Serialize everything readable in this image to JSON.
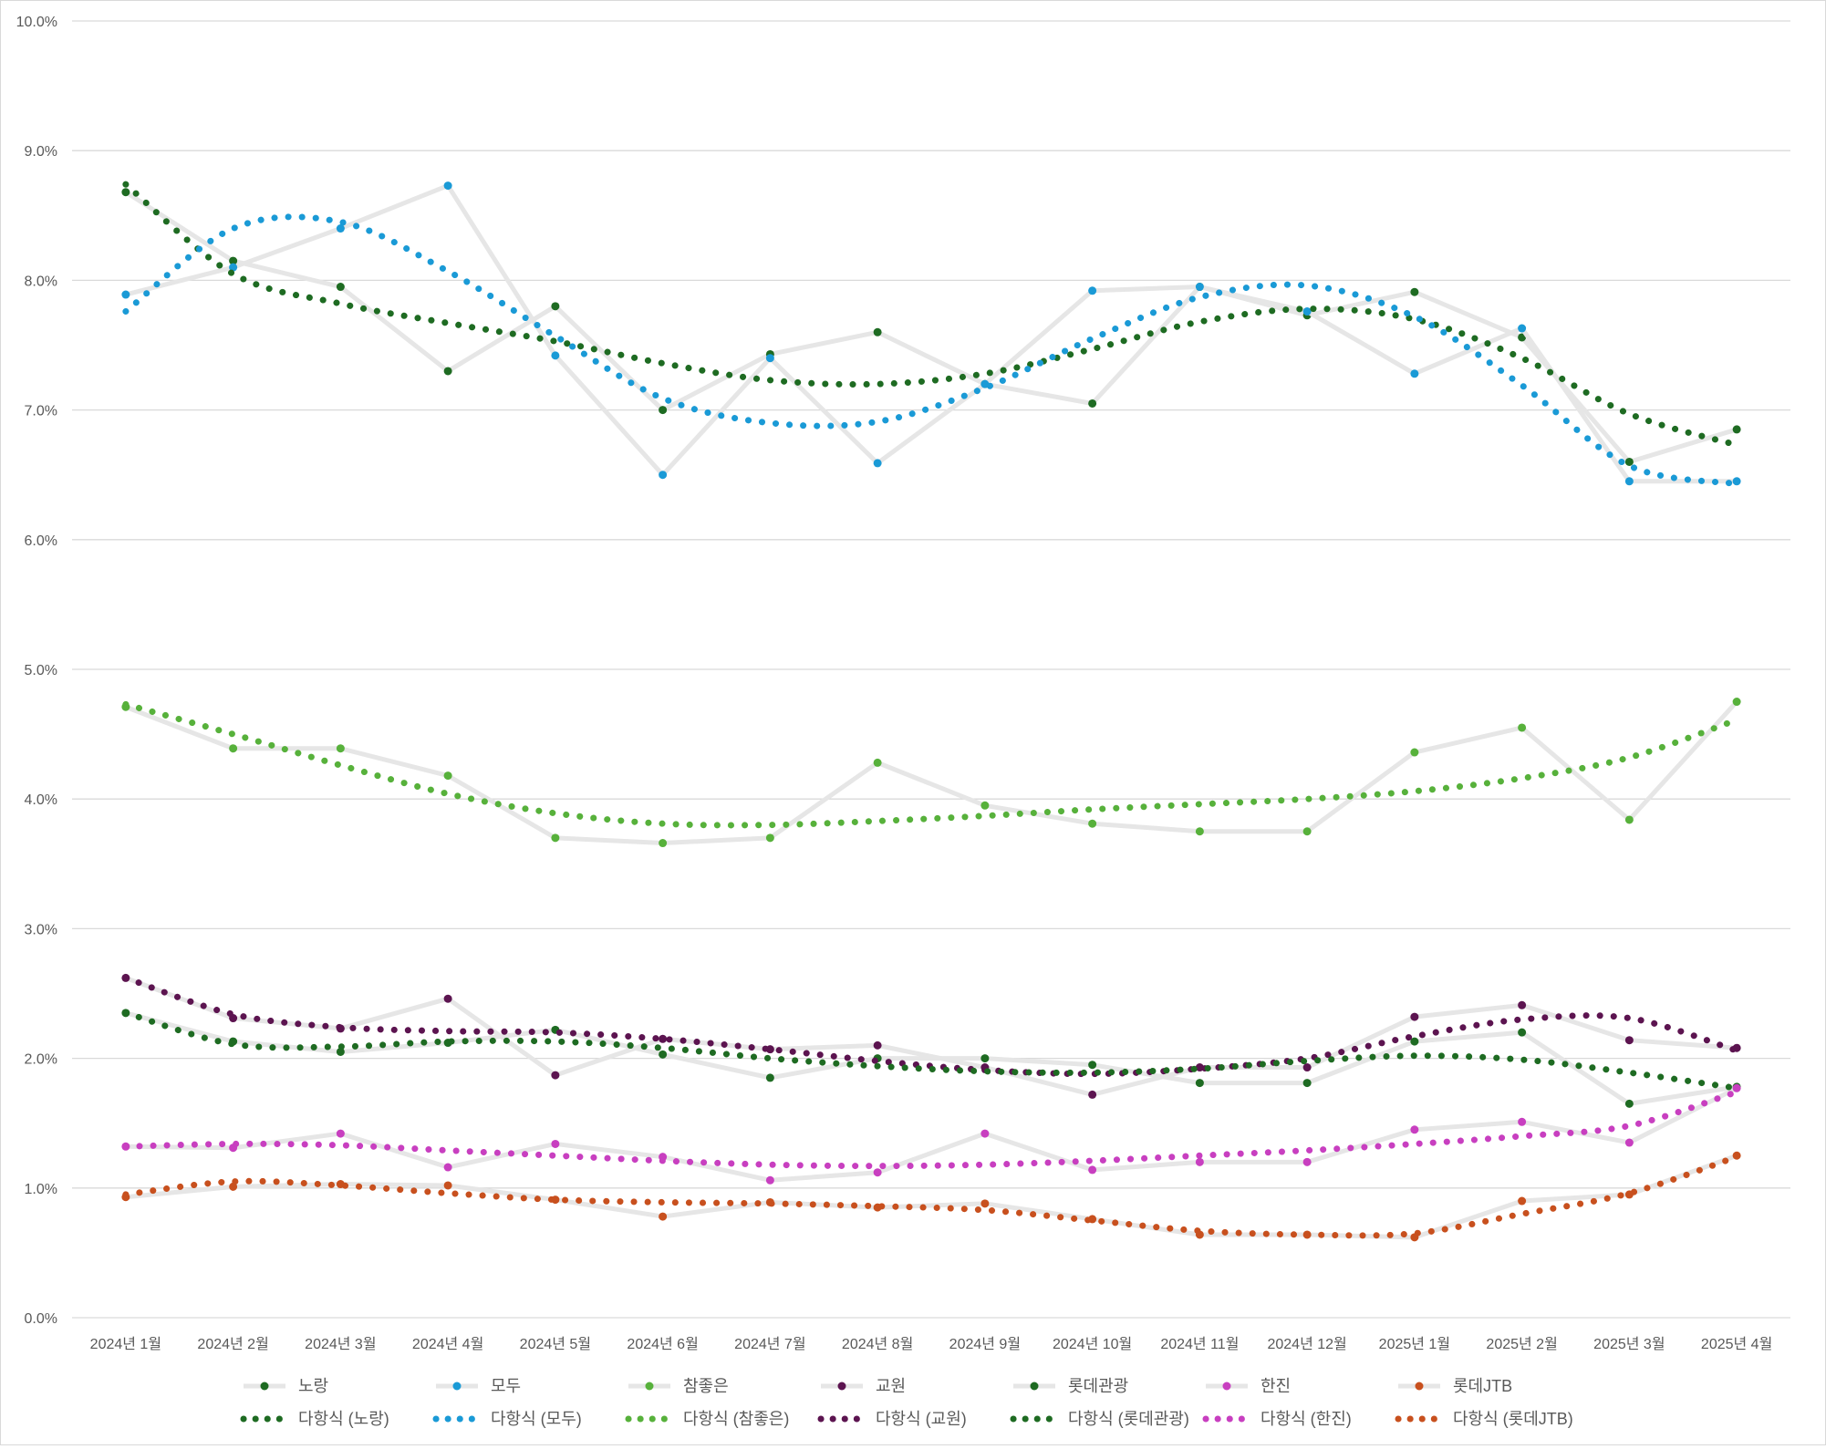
{
  "chart_data": {
    "type": "line",
    "categories": [
      "2024년 1월",
      "2024년 2월",
      "2024년 3월",
      "2024년 4월",
      "2024년 5월",
      "2024년 6월",
      "2024년 7월",
      "2024년 8월",
      "2024년 9월",
      "2024년 10월",
      "2024년 11월",
      "2024년 12월",
      "2025년 1월",
      "2025년 2월",
      "2025년 3월",
      "2025년 4월"
    ],
    "ylim": [
      0,
      10
    ],
    "yticks": [
      "0.0%",
      "1.0%",
      "2.0%",
      "3.0%",
      "4.0%",
      "5.0%",
      "6.0%",
      "7.0%",
      "8.0%",
      "9.0%",
      "10.0%"
    ],
    "grid": true,
    "legend_position": "bottom",
    "series": [
      {
        "name": "노랑",
        "color": "#1e6b22",
        "values": [
          8.68,
          8.15,
          7.95,
          7.3,
          7.8,
          7.0,
          7.43,
          7.6,
          7.2,
          7.05,
          7.95,
          7.73,
          7.91,
          7.56,
          6.6,
          6.85
        ]
      },
      {
        "name": "모두",
        "color": "#1a9ad6",
        "values": [
          7.89,
          8.1,
          8.4,
          8.73,
          7.42,
          6.5,
          7.4,
          6.59,
          7.2,
          7.92,
          7.95,
          7.76,
          7.28,
          7.63,
          6.45,
          6.45
        ]
      },
      {
        "name": "참좋은",
        "color": "#57b13b",
        "values": [
          4.71,
          4.39,
          4.39,
          4.18,
          3.7,
          3.66,
          3.7,
          4.28,
          3.95,
          3.81,
          3.75,
          3.75,
          4.36,
          4.55,
          3.84,
          4.75
        ]
      },
      {
        "name": "교원",
        "color": "#5c1450",
        "values": [
          2.62,
          2.31,
          2.23,
          2.46,
          1.87,
          2.15,
          2.07,
          2.1,
          1.93,
          1.72,
          1.93,
          1.93,
          2.32,
          2.41,
          2.14,
          2.08
        ]
      },
      {
        "name": "롯데관광",
        "color": "#1e6b22",
        "values": [
          2.35,
          2.13,
          2.05,
          2.12,
          2.22,
          2.03,
          1.85,
          2.0,
          2.0,
          1.95,
          1.81,
          1.81,
          2.13,
          2.2,
          1.65,
          1.78
        ]
      },
      {
        "name": "한진",
        "color": "#c83fc0",
        "values": [
          1.32,
          1.31,
          1.42,
          1.16,
          1.34,
          1.24,
          1.06,
          1.12,
          1.42,
          1.14,
          1.2,
          1.2,
          1.45,
          1.51,
          1.35,
          1.77
        ]
      },
      {
        "name": "롯데JTB",
        "color": "#c8501e",
        "values": [
          0.93,
          1.01,
          1.03,
          1.02,
          0.91,
          0.78,
          0.89,
          0.85,
          0.88,
          0.76,
          0.64,
          0.64,
          0.62,
          0.9,
          0.95,
          1.25
        ]
      }
    ],
    "trendlines": [
      {
        "name": "다항식 (노랑)",
        "color": "#1e6b22",
        "values": [
          8.74,
          8.05,
          7.82,
          7.67,
          7.53,
          7.36,
          7.23,
          7.2,
          7.28,
          7.47,
          7.68,
          7.78,
          7.7,
          7.4,
          6.97,
          6.73
        ]
      },
      {
        "name": "다항식 (모두)",
        "color": "#1a9ad6",
        "values": [
          7.76,
          8.4,
          8.45,
          8.07,
          7.57,
          7.09,
          6.9,
          6.91,
          7.17,
          7.55,
          7.87,
          7.96,
          7.72,
          7.19,
          6.57,
          6.43
        ]
      },
      {
        "name": "다항식 (참좋은)",
        "color": "#57b13b",
        "values": [
          4.73,
          4.5,
          4.26,
          4.04,
          3.89,
          3.81,
          3.8,
          3.83,
          3.87,
          3.92,
          3.96,
          4.0,
          4.06,
          4.16,
          4.32,
          4.61
        ]
      },
      {
        "name": "다항식 (교원)",
        "color": "#5c1450",
        "values": [
          2.62,
          2.34,
          2.24,
          2.21,
          2.2,
          2.15,
          2.07,
          1.98,
          1.91,
          1.88,
          1.92,
          2.0,
          2.17,
          2.3,
          2.31,
          2.06
        ]
      },
      {
        "name": "다항식 (롯데관광)",
        "color": "#1e6b22",
        "values": [
          2.35,
          2.11,
          2.09,
          2.13,
          2.13,
          2.08,
          2.0,
          1.94,
          1.9,
          1.89,
          1.92,
          1.98,
          2.02,
          1.99,
          1.89,
          1.77
        ]
      },
      {
        "name": "다항식 (한진)",
        "color": "#c83fc0",
        "values": [
          1.32,
          1.34,
          1.33,
          1.29,
          1.25,
          1.21,
          1.18,
          1.17,
          1.18,
          1.21,
          1.25,
          1.29,
          1.34,
          1.4,
          1.48,
          1.74
        ]
      },
      {
        "name": "다항식 (롯데JTB)",
        "color": "#c8501e",
        "values": [
          0.95,
          1.05,
          1.02,
          0.96,
          0.91,
          0.89,
          0.88,
          0.86,
          0.83,
          0.75,
          0.67,
          0.64,
          0.65,
          0.8,
          0.96,
          1.24
        ]
      }
    ]
  }
}
